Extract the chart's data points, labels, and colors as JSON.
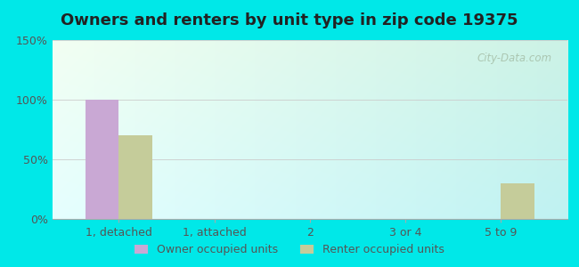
{
  "title": "Owners and renters by unit type in zip code 19375",
  "categories": [
    "1, detached",
    "1, attached",
    "2",
    "3 or 4",
    "5 to 9"
  ],
  "owner_values": [
    100,
    0,
    0,
    0,
    0
  ],
  "renter_values": [
    70,
    0,
    0,
    0,
    30
  ],
  "owner_color": "#c9a8d4",
  "renter_color": "#c5cc9a",
  "ylim": [
    0,
    150
  ],
  "yticks": [
    0,
    50,
    100,
    150
  ],
  "ytick_labels": [
    "0%",
    "50%",
    "100%",
    "150%"
  ],
  "bar_width": 0.35,
  "outer_bg_color": "#00e8e8",
  "watermark": "City-Data.com",
  "legend_owner": "Owner occupied units",
  "legend_renter": "Renter occupied units",
  "title_fontsize": 13,
  "tick_fontsize": 9,
  "legend_fontsize": 9
}
